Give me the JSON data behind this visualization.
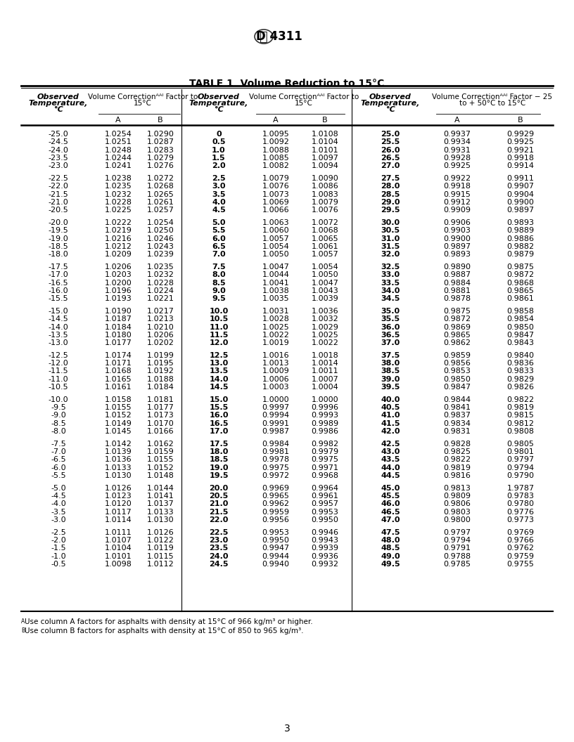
{
  "title": "TABLE 1  Volume Reduction to 15°C",
  "footnote_a": "AUse column A factors for asphalts with density at 15°C of 966 kg/m³ or higher.",
  "footnote_b": "BUse column B factors for asphalts with density at 15°C of 850 to 965 kg/m³.",
  "page_number": "3",
  "col1_data": [
    [
      "-25.0",
      "1.0254",
      "1.0290"
    ],
    [
      "-24.5",
      "1.0251",
      "1.0287"
    ],
    [
      "-24.0",
      "1.0248",
      "1.0283"
    ],
    [
      "-23.5",
      "1.0244",
      "1.0279"
    ],
    [
      "-23.0",
      "1.0241",
      "1.0276"
    ],
    [
      "",
      "",
      ""
    ],
    [
      "-22.5",
      "1.0238",
      "1.0272"
    ],
    [
      "-22.0",
      "1.0235",
      "1.0268"
    ],
    [
      "-21.5",
      "1.0232",
      "1.0265"
    ],
    [
      "-21.0",
      "1.0228",
      "1.0261"
    ],
    [
      "-20.5",
      "1.0225",
      "1.0257"
    ],
    [
      "",
      "",
      ""
    ],
    [
      "-20.0",
      "1.0222",
      "1.0254"
    ],
    [
      "-19.5",
      "1.0219",
      "1.0250"
    ],
    [
      "-19.0",
      "1.0216",
      "1.0246"
    ],
    [
      "-18.5",
      "1.0212",
      "1.0243"
    ],
    [
      "-18.0",
      "1.0209",
      "1.0239"
    ],
    [
      "",
      "",
      ""
    ],
    [
      "-17.5",
      "1.0206",
      "1.0235"
    ],
    [
      "-17.0",
      "1.0203",
      "1.0232"
    ],
    [
      "-16.5",
      "1.0200",
      "1.0228"
    ],
    [
      "-16.0",
      "1.0196",
      "1.0224"
    ],
    [
      "-15.5",
      "1.0193",
      "1.0221"
    ],
    [
      "",
      "",
      ""
    ],
    [
      "-15.0",
      "1.0190",
      "1.0217"
    ],
    [
      "-14.5",
      "1.0187",
      "1.0213"
    ],
    [
      "-14.0",
      "1.0184",
      "1.0210"
    ],
    [
      "-13.5",
      "1.0180",
      "1.0206"
    ],
    [
      "-13.0",
      "1.0177",
      "1.0202"
    ],
    [
      "",
      "",
      ""
    ],
    [
      "-12.5",
      "1.0174",
      "1.0199"
    ],
    [
      "-12.0",
      "1.0171",
      "1.0195"
    ],
    [
      "-11.5",
      "1.0168",
      "1.0192"
    ],
    [
      "-11.0",
      "1.0165",
      "1.0188"
    ],
    [
      "-10.5",
      "1.0161",
      "1.0184"
    ],
    [
      "",
      "",
      ""
    ],
    [
      "-10.0",
      "1.0158",
      "1.0181"
    ],
    [
      "-9.5",
      "1.0155",
      "1.0177"
    ],
    [
      "-9.0",
      "1.0152",
      "1.0173"
    ],
    [
      "-8.5",
      "1.0149",
      "1.0170"
    ],
    [
      "-8.0",
      "1.0145",
      "1.0166"
    ],
    [
      "",
      "",
      ""
    ],
    [
      "-7.5",
      "1.0142",
      "1.0162"
    ],
    [
      "-7.0",
      "1.0139",
      "1.0159"
    ],
    [
      "-6.5",
      "1.0136",
      "1.0155"
    ],
    [
      "-6.0",
      "1.0133",
      "1.0152"
    ],
    [
      "-5.5",
      "1.0130",
      "1.0148"
    ],
    [
      "",
      "",
      ""
    ],
    [
      "-5.0",
      "1.0126",
      "1.0144"
    ],
    [
      "-4.5",
      "1.0123",
      "1.0141"
    ],
    [
      "-4.0",
      "1.0120",
      "1.0137"
    ],
    [
      "-3.5",
      "1.0117",
      "1.0133"
    ],
    [
      "-3.0",
      "1.0114",
      "1.0130"
    ],
    [
      "",
      "",
      ""
    ],
    [
      "-2.5",
      "1.0111",
      "1.0126"
    ],
    [
      "-2.0",
      "1.0107",
      "1.0122"
    ],
    [
      "-1.5",
      "1.0104",
      "1.0119"
    ],
    [
      "-1.0",
      "1.0101",
      "1.0115"
    ],
    [
      "-0.5",
      "1.0098",
      "1.0112"
    ]
  ],
  "col2_data": [
    [
      "0",
      "1.0095",
      "1.0108"
    ],
    [
      "0.5",
      "1.0092",
      "1.0104"
    ],
    [
      "1.0",
      "1.0088",
      "1.0101"
    ],
    [
      "1.5",
      "1.0085",
      "1.0097"
    ],
    [
      "2.0",
      "1.0082",
      "1.0094"
    ],
    [
      "",
      "",
      ""
    ],
    [
      "2.5",
      "1.0079",
      "1.0090"
    ],
    [
      "3.0",
      "1.0076",
      "1.0086"
    ],
    [
      "3.5",
      "1.0073",
      "1.0083"
    ],
    [
      "4.0",
      "1.0069",
      "1.0079"
    ],
    [
      "4.5",
      "1.0066",
      "1.0076"
    ],
    [
      "",
      "",
      ""
    ],
    [
      "5.0",
      "1.0063",
      "1.0072"
    ],
    [
      "5.5",
      "1.0060",
      "1.0068"
    ],
    [
      "6.0",
      "1.0057",
      "1.0065"
    ],
    [
      "6.5",
      "1.0054",
      "1.0061"
    ],
    [
      "7.0",
      "1.0050",
      "1.0057"
    ],
    [
      "",
      "",
      ""
    ],
    [
      "7.5",
      "1.0047",
      "1.0054"
    ],
    [
      "8.0",
      "1.0044",
      "1.0050"
    ],
    [
      "8.5",
      "1.0041",
      "1.0047"
    ],
    [
      "9.0",
      "1.0038",
      "1.0043"
    ],
    [
      "9.5",
      "1.0035",
      "1.0039"
    ],
    [
      "",
      "",
      ""
    ],
    [
      "10.0",
      "1.0031",
      "1.0036"
    ],
    [
      "10.5",
      "1.0028",
      "1.0032"
    ],
    [
      "11.0",
      "1.0025",
      "1.0029"
    ],
    [
      "11.5",
      "1.0022",
      "1.0025"
    ],
    [
      "12.0",
      "1.0019",
      "1.0022"
    ],
    [
      "",
      "",
      ""
    ],
    [
      "12.5",
      "1.0016",
      "1.0018"
    ],
    [
      "13.0",
      "1.0013",
      "1.0014"
    ],
    [
      "13.5",
      "1.0009",
      "1.0011"
    ],
    [
      "14.0",
      "1.0006",
      "1.0007"
    ],
    [
      "14.5",
      "1.0003",
      "1.0004"
    ],
    [
      "",
      "",
      ""
    ],
    [
      "15.0",
      "1.0000",
      "1.0000"
    ],
    [
      "15.5",
      "0.9997",
      "0.9996"
    ],
    [
      "16.0",
      "0.9994",
      "0.9993"
    ],
    [
      "16.5",
      "0.9991",
      "0.9989"
    ],
    [
      "17.0",
      "0.9987",
      "0.9986"
    ],
    [
      "",
      "",
      ""
    ],
    [
      "17.5",
      "0.9984",
      "0.9982"
    ],
    [
      "18.0",
      "0.9981",
      "0.9979"
    ],
    [
      "18.5",
      "0.9978",
      "0.9975"
    ],
    [
      "19.0",
      "0.9975",
      "0.9971"
    ],
    [
      "19.5",
      "0.9972",
      "0.9968"
    ],
    [
      "",
      "",
      ""
    ],
    [
      "20.0",
      "0.9969",
      "0.9964"
    ],
    [
      "20.5",
      "0.9965",
      "0.9961"
    ],
    [
      "21.0",
      "0.9962",
      "0.9957"
    ],
    [
      "21.5",
      "0.9959",
      "0.9953"
    ],
    [
      "22.0",
      "0.9956",
      "0.9950"
    ],
    [
      "",
      "",
      ""
    ],
    [
      "22.5",
      "0.9953",
      "0.9946"
    ],
    [
      "23.0",
      "0.9950",
      "0.9943"
    ],
    [
      "23.5",
      "0.9947",
      "0.9939"
    ],
    [
      "24.0",
      "0.9944",
      "0.9936"
    ],
    [
      "24.5",
      "0.9940",
      "0.9932"
    ]
  ],
  "col3_data": [
    [
      "25.0",
      "0.9937",
      "0.9929"
    ],
    [
      "25.5",
      "0.9934",
      "0.9925"
    ],
    [
      "26.0",
      "0.9931",
      "0.9921"
    ],
    [
      "26.5",
      "0.9928",
      "0.9918"
    ],
    [
      "27.0",
      "0.9925",
      "0.9914"
    ],
    [
      "",
      "",
      ""
    ],
    [
      "27.5",
      "0.9922",
      "0.9911"
    ],
    [
      "28.0",
      "0.9918",
      "0.9907"
    ],
    [
      "28.5",
      "0.9915",
      "0.9904"
    ],
    [
      "29.0",
      "0.9912",
      "0.9900"
    ],
    [
      "29.5",
      "0.9909",
      "0.9897"
    ],
    [
      "",
      "",
      ""
    ],
    [
      "30.0",
      "0.9906",
      "0.9893"
    ],
    [
      "30.5",
      "0.9903",
      "0.9889"
    ],
    [
      "31.0",
      "0.9900",
      "0.9886"
    ],
    [
      "31.5",
      "0.9897",
      "0.9882"
    ],
    [
      "32.0",
      "0.9893",
      "0.9879"
    ],
    [
      "",
      "",
      ""
    ],
    [
      "32.5",
      "0.9890",
      "0.9875"
    ],
    [
      "33.0",
      "0.9887",
      "0.9872"
    ],
    [
      "33.5",
      "0.9884",
      "0.9868"
    ],
    [
      "34.0",
      "0.9881",
      "0.9865"
    ],
    [
      "34.5",
      "0.9878",
      "0.9861"
    ],
    [
      "",
      "",
      ""
    ],
    [
      "35.0",
      "0.9875",
      "0.9858"
    ],
    [
      "35.5",
      "0.9872",
      "0.9854"
    ],
    [
      "36.0",
      "0.9869",
      "0.9850"
    ],
    [
      "36.5",
      "0.9865",
      "0.9847"
    ],
    [
      "37.0",
      "0.9862",
      "0.9843"
    ],
    [
      "",
      "",
      ""
    ],
    [
      "37.5",
      "0.9859",
      "0.9840"
    ],
    [
      "38.0",
      "0.9856",
      "0.9836"
    ],
    [
      "38.5",
      "0.9853",
      "0.9833"
    ],
    [
      "39.0",
      "0.9850",
      "0.9829"
    ],
    [
      "39.5",
      "0.9847",
      "0.9826"
    ],
    [
      "",
      "",
      ""
    ],
    [
      "40.0",
      "0.9844",
      "0.9822"
    ],
    [
      "40.5",
      "0.9841",
      "0.9819"
    ],
    [
      "41.0",
      "0.9837",
      "0.9815"
    ],
    [
      "41.5",
      "0.9834",
      "0.9812"
    ],
    [
      "42.0",
      "0.9831",
      "0.9808"
    ],
    [
      "",
      "",
      ""
    ],
    [
      "42.5",
      "0.9828",
      "0.9805"
    ],
    [
      "43.0",
      "0.9825",
      "0.9801"
    ],
    [
      "43.5",
      "0.9822",
      "0.9797"
    ],
    [
      "44.0",
      "0.9819",
      "0.9794"
    ],
    [
      "44.5",
      "0.9816",
      "0.9790"
    ],
    [
      "",
      "",
      ""
    ],
    [
      "45.0",
      "0.9813",
      "1.9787"
    ],
    [
      "45.5",
      "0.9809",
      "0.9783"
    ],
    [
      "46.0",
      "0.9806",
      "0.9780"
    ],
    [
      "46.5",
      "0.9803",
      "0.9776"
    ],
    [
      "47.0",
      "0.9800",
      "0.9773"
    ],
    [
      "",
      "",
      ""
    ],
    [
      "47.5",
      "0.9797",
      "0.9769"
    ],
    [
      "48.0",
      "0.9794",
      "0.9766"
    ],
    [
      "48.5",
      "0.9791",
      "0.9762"
    ],
    [
      "49.0",
      "0.9788",
      "0.9759"
    ],
    [
      "49.5",
      "0.9785",
      "0.9755"
    ]
  ]
}
